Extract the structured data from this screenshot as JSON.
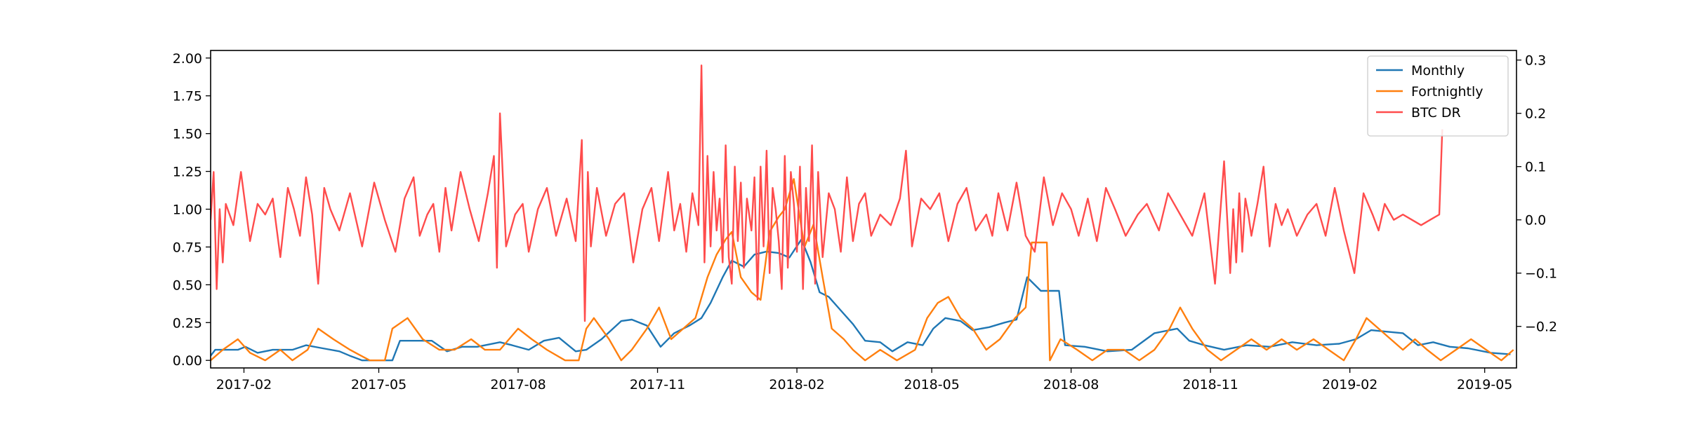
{
  "chart_data": {
    "type": "line",
    "title": "",
    "xlabel": "",
    "ylabel": "",
    "y2label": "",
    "xlim": [
      "2017-01-10",
      "2019-05-22"
    ],
    "ylim": [
      -0.05,
      2.05
    ],
    "y2lim": [
      -0.278,
      0.318
    ],
    "grid": false,
    "legend_position": "top-right",
    "x_ticks": [
      "2017-02",
      "2017-05",
      "2017-08",
      "2017-11",
      "2018-02",
      "2018-05",
      "2018-08",
      "2018-11",
      "2019-02",
      "2019-05"
    ],
    "y_ticks": [
      "0.00",
      "0.25",
      "0.50",
      "0.75",
      "1.00",
      "1.25",
      "1.50",
      "1.75",
      "2.00"
    ],
    "y2_ticks": [
      "−0.2",
      "−0.1",
      "0.0",
      "0.1",
      "0.2",
      "0.3"
    ],
    "series": [
      {
        "name": "Monthly",
        "axis": "left",
        "color": "#1f77b4",
        "x": [
          "2017-01-10",
          "2017-01-13",
          "2017-01-28",
          "2017-02-02",
          "2017-02-10",
          "2017-02-20",
          "2017-03-05",
          "2017-03-14",
          "2017-03-25",
          "2017-04-05",
          "2017-04-12",
          "2017-04-20",
          "2017-05-10",
          "2017-05-15",
          "2017-06-05",
          "2017-06-15",
          "2017-06-25",
          "2017-07-05",
          "2017-07-20",
          "2017-07-28",
          "2017-08-08",
          "2017-08-18",
          "2017-08-28",
          "2017-09-08",
          "2017-09-15",
          "2017-09-25",
          "2017-10-08",
          "2017-10-15",
          "2017-10-25",
          "2017-11-03",
          "2017-11-12",
          "2017-11-22",
          "2017-11-30",
          "2017-12-06",
          "2017-12-14",
          "2017-12-20",
          "2017-12-28",
          "2018-01-04",
          "2018-01-12",
          "2018-01-20",
          "2018-01-27",
          "2018-02-04",
          "2018-02-10",
          "2018-02-16",
          "2018-02-22",
          "2018-03-02",
          "2018-03-10",
          "2018-03-18",
          "2018-03-28",
          "2018-04-05",
          "2018-04-15",
          "2018-04-25",
          "2018-05-02",
          "2018-05-10",
          "2018-05-20",
          "2018-05-28",
          "2018-06-08",
          "2018-06-18",
          "2018-06-26",
          "2018-07-03",
          "2018-07-12",
          "2018-07-24",
          "2018-07-28",
          "2018-08-10",
          "2018-08-25",
          "2018-09-10",
          "2018-09-25",
          "2018-10-10",
          "2018-10-18",
          "2018-10-28",
          "2018-11-10",
          "2018-11-25",
          "2018-12-10",
          "2018-12-25",
          "2019-01-10",
          "2019-01-25",
          "2019-02-05",
          "2019-02-15",
          "2019-02-25",
          "2019-03-08",
          "2019-03-18",
          "2019-03-28",
          "2019-04-08",
          "2019-04-20",
          "2019-05-05",
          "2019-05-18"
        ],
        "values": [
          0.03,
          0.07,
          0.07,
          0.09,
          0.05,
          0.07,
          0.07,
          0.1,
          0.08,
          0.06,
          0.03,
          0.0,
          0.0,
          0.13,
          0.13,
          0.06,
          0.09,
          0.09,
          0.12,
          0.1,
          0.07,
          0.13,
          0.15,
          0.06,
          0.07,
          0.14,
          0.26,
          0.27,
          0.23,
          0.09,
          0.18,
          0.23,
          0.28,
          0.38,
          0.55,
          0.66,
          0.62,
          0.7,
          0.72,
          0.71,
          0.68,
          0.8,
          0.65,
          0.45,
          0.42,
          0.33,
          0.24,
          0.13,
          0.12,
          0.06,
          0.12,
          0.1,
          0.21,
          0.28,
          0.26,
          0.2,
          0.22,
          0.25,
          0.27,
          0.55,
          0.46,
          0.46,
          0.1,
          0.09,
          0.06,
          0.07,
          0.18,
          0.21,
          0.13,
          0.1,
          0.07,
          0.1,
          0.09,
          0.12,
          0.1,
          0.11,
          0.14,
          0.2,
          0.19,
          0.18,
          0.1,
          0.12,
          0.09,
          0.08,
          0.05,
          0.04
        ]
      },
      {
        "name": "Fortnightly",
        "axis": "left",
        "color": "#ff7f0e",
        "x": [
          "2017-01-10",
          "2017-01-18",
          "2017-01-28",
          "2017-02-05",
          "2017-02-15",
          "2017-02-25",
          "2017-03-05",
          "2017-03-15",
          "2017-03-22",
          "2017-04-01",
          "2017-04-12",
          "2017-04-25",
          "2017-05-05",
          "2017-05-10",
          "2017-05-20",
          "2017-05-30",
          "2017-06-10",
          "2017-06-20",
          "2017-07-01",
          "2017-07-10",
          "2017-07-20",
          "2017-08-01",
          "2017-08-10",
          "2017-08-20",
          "2017-09-01",
          "2017-09-10",
          "2017-09-15",
          "2017-09-20",
          "2017-09-30",
          "2017-10-08",
          "2017-10-15",
          "2017-10-25",
          "2017-11-02",
          "2017-11-10",
          "2017-11-18",
          "2017-11-26",
          "2017-12-04",
          "2017-12-10",
          "2017-12-16",
          "2017-12-20",
          "2017-12-26",
          "2018-01-02",
          "2018-01-08",
          "2018-01-14",
          "2018-01-20",
          "2018-01-24",
          "2018-01-30",
          "2018-02-06",
          "2018-02-12",
          "2018-02-18",
          "2018-02-24",
          "2018-03-04",
          "2018-03-10",
          "2018-03-18",
          "2018-03-28",
          "2018-04-08",
          "2018-04-20",
          "2018-04-28",
          "2018-05-05",
          "2018-05-12",
          "2018-05-20",
          "2018-05-28",
          "2018-06-06",
          "2018-06-15",
          "2018-06-25",
          "2018-07-02",
          "2018-07-06",
          "2018-07-16",
          "2018-07-18",
          "2018-07-25",
          "2018-08-05",
          "2018-08-15",
          "2018-08-25",
          "2018-09-05",
          "2018-09-15",
          "2018-09-25",
          "2018-10-05",
          "2018-10-12",
          "2018-10-20",
          "2018-10-30",
          "2018-11-08",
          "2018-11-18",
          "2018-11-28",
          "2018-12-08",
          "2018-12-18",
          "2018-12-28",
          "2019-01-08",
          "2019-01-18",
          "2019-01-28",
          "2019-02-05",
          "2019-02-12",
          "2019-02-20",
          "2019-02-28",
          "2019-03-08",
          "2019-03-16",
          "2019-03-24",
          "2019-04-02",
          "2019-04-12",
          "2019-04-22",
          "2019-05-02",
          "2019-05-12",
          "2019-05-20"
        ],
        "values": [
          0.0,
          0.07,
          0.14,
          0.05,
          0.0,
          0.07,
          0.0,
          0.07,
          0.21,
          0.14,
          0.07,
          0.0,
          0.0,
          0.21,
          0.28,
          0.14,
          0.07,
          0.07,
          0.14,
          0.07,
          0.07,
          0.21,
          0.14,
          0.07,
          0.0,
          0.0,
          0.21,
          0.28,
          0.14,
          0.0,
          0.07,
          0.21,
          0.35,
          0.14,
          0.21,
          0.28,
          0.55,
          0.7,
          0.8,
          0.85,
          0.55,
          0.45,
          0.4,
          0.85,
          0.95,
          1.0,
          1.2,
          0.75,
          0.9,
          0.55,
          0.21,
          0.14,
          0.07,
          0.0,
          0.07,
          0.0,
          0.07,
          0.28,
          0.38,
          0.42,
          0.28,
          0.21,
          0.07,
          0.14,
          0.28,
          0.35,
          0.78,
          0.78,
          0.0,
          0.14,
          0.07,
          0.0,
          0.07,
          0.07,
          0.0,
          0.07,
          0.21,
          0.35,
          0.21,
          0.07,
          0.0,
          0.07,
          0.14,
          0.07,
          0.14,
          0.07,
          0.14,
          0.07,
          0.0,
          0.14,
          0.28,
          0.21,
          0.14,
          0.07,
          0.14,
          0.07,
          0.0,
          0.07,
          0.14,
          0.07,
          0.0,
          0.07
        ]
      },
      {
        "name": "BTC DR",
        "axis": "right",
        "color": "#ff4c4c",
        "x": [
          "2017-01-10",
          "2017-01-12",
          "2017-01-14",
          "2017-01-16",
          "2017-01-18",
          "2017-01-20",
          "2017-01-25",
          "2017-01-30",
          "2017-02-05",
          "2017-02-10",
          "2017-02-15",
          "2017-02-20",
          "2017-02-25",
          "2017-03-02",
          "2017-03-06",
          "2017-03-10",
          "2017-03-14",
          "2017-03-18",
          "2017-03-22",
          "2017-03-26",
          "2017-03-30",
          "2017-04-05",
          "2017-04-12",
          "2017-04-20",
          "2017-04-28",
          "2017-05-05",
          "2017-05-12",
          "2017-05-18",
          "2017-05-24",
          "2017-05-28",
          "2017-06-02",
          "2017-06-06",
          "2017-06-10",
          "2017-06-14",
          "2017-06-18",
          "2017-06-24",
          "2017-06-30",
          "2017-07-06",
          "2017-07-12",
          "2017-07-16",
          "2017-07-18",
          "2017-07-20",
          "2017-07-24",
          "2017-07-30",
          "2017-08-04",
          "2017-08-08",
          "2017-08-14",
          "2017-08-20",
          "2017-08-26",
          "2017-09-02",
          "2017-09-08",
          "2017-09-12",
          "2017-09-14",
          "2017-09-16",
          "2017-09-18",
          "2017-09-22",
          "2017-09-28",
          "2017-10-04",
          "2017-10-10",
          "2017-10-16",
          "2017-10-22",
          "2017-10-28",
          "2017-11-02",
          "2017-11-08",
          "2017-11-12",
          "2017-11-16",
          "2017-11-20",
          "2017-11-24",
          "2017-11-28",
          "2017-11-30",
          "2017-12-02",
          "2017-12-04",
          "2017-12-06",
          "2017-12-08",
          "2017-12-10",
          "2017-12-12",
          "2017-12-14",
          "2017-12-16",
          "2017-12-18",
          "2017-12-20",
          "2017-12-22",
          "2017-12-24",
          "2017-12-26",
          "2017-12-28",
          "2017-12-30",
          "2018-01-02",
          "2018-01-04",
          "2018-01-06",
          "2018-01-08",
          "2018-01-10",
          "2018-01-12",
          "2018-01-14",
          "2018-01-16",
          "2018-01-18",
          "2018-01-20",
          "2018-01-22",
          "2018-01-24",
          "2018-01-26",
          "2018-01-28",
          "2018-01-30",
          "2018-02-01",
          "2018-02-03",
          "2018-02-05",
          "2018-02-07",
          "2018-02-09",
          "2018-02-11",
          "2018-02-13",
          "2018-02-15",
          "2018-02-18",
          "2018-02-22",
          "2018-02-26",
          "2018-03-02",
          "2018-03-06",
          "2018-03-10",
          "2018-03-14",
          "2018-03-18",
          "2018-03-22",
          "2018-03-28",
          "2018-04-04",
          "2018-04-10",
          "2018-04-14",
          "2018-04-18",
          "2018-04-24",
          "2018-04-30",
          "2018-05-06",
          "2018-05-12",
          "2018-05-18",
          "2018-05-24",
          "2018-05-30",
          "2018-06-06",
          "2018-06-10",
          "2018-06-14",
          "2018-06-20",
          "2018-06-26",
          "2018-07-02",
          "2018-07-08",
          "2018-07-14",
          "2018-07-20",
          "2018-07-26",
          "2018-08-01",
          "2018-08-06",
          "2018-08-12",
          "2018-08-18",
          "2018-08-24",
          "2018-08-30",
          "2018-09-06",
          "2018-09-14",
          "2018-09-20",
          "2018-09-28",
          "2018-10-04",
          "2018-10-12",
          "2018-10-20",
          "2018-10-28",
          "2018-11-04",
          "2018-11-10",
          "2018-11-14",
          "2018-11-16",
          "2018-11-18",
          "2018-11-20",
          "2018-11-22",
          "2018-11-24",
          "2018-11-26",
          "2018-11-28",
          "2018-12-02",
          "2018-12-06",
          "2018-12-10",
          "2018-12-14",
          "2018-12-18",
          "2018-12-22",
          "2018-12-28",
          "2019-01-04",
          "2019-01-10",
          "2019-01-16",
          "2019-01-22",
          "2019-01-28",
          "2019-02-04",
          "2019-02-10",
          "2019-02-16",
          "2019-02-20",
          "2019-02-24",
          "2019-03-02",
          "2019-03-08",
          "2019-03-14",
          "2019-03-20",
          "2019-03-26",
          "2019-04-01",
          "2019-04-03"
        ],
        "values": [
          0.0,
          0.09,
          -0.13,
          0.02,
          -0.08,
          0.03,
          -0.01,
          0.09,
          -0.04,
          0.03,
          0.01,
          0.04,
          -0.07,
          0.06,
          0.02,
          -0.03,
          0.08,
          0.01,
          -0.12,
          0.06,
          0.02,
          -0.02,
          0.05,
          -0.05,
          0.07,
          0.0,
          -0.06,
          0.04,
          0.08,
          -0.03,
          0.01,
          0.03,
          -0.06,
          0.06,
          -0.02,
          0.09,
          0.02,
          -0.04,
          0.05,
          0.12,
          -0.09,
          0.2,
          -0.05,
          0.01,
          0.03,
          -0.06,
          0.02,
          0.06,
          -0.03,
          0.04,
          -0.04,
          0.15,
          -0.19,
          0.09,
          -0.05,
          0.06,
          -0.03,
          0.03,
          0.05,
          -0.08,
          0.02,
          0.06,
          -0.04,
          0.09,
          -0.02,
          0.03,
          -0.06,
          0.05,
          -0.01,
          0.29,
          -0.08,
          0.12,
          -0.05,
          0.09,
          -0.02,
          0.04,
          -0.08,
          0.14,
          -0.07,
          -0.12,
          0.1,
          -0.04,
          0.07,
          -0.09,
          0.04,
          -0.02,
          0.08,
          -0.15,
          0.1,
          -0.05,
          0.13,
          -0.1,
          0.06,
          0.02,
          -0.04,
          -0.13,
          0.12,
          -0.09,
          0.09,
          0.03,
          -0.06,
          0.1,
          -0.13,
          0.06,
          -0.04,
          0.14,
          -0.12,
          0.09,
          -0.07,
          0.05,
          0.02,
          -0.06,
          0.08,
          -0.04,
          0.03,
          0.05,
          -0.03,
          0.01,
          -0.01,
          0.04,
          0.13,
          -0.05,
          0.04,
          0.02,
          0.05,
          -0.04,
          0.03,
          0.06,
          -0.02,
          0.01,
          -0.03,
          0.05,
          -0.02,
          0.07,
          -0.03,
          -0.06,
          0.08,
          -0.01,
          0.05,
          0.02,
          -0.03,
          0.04,
          -0.04,
          0.06,
          0.02,
          -0.03,
          0.01,
          0.03,
          -0.02,
          0.05,
          0.01,
          -0.03,
          0.05,
          -0.12,
          0.11,
          -0.1,
          0.02,
          -0.08,
          0.05,
          -0.06,
          0.04,
          0.01,
          -0.03,
          0.03,
          0.1,
          -0.05,
          0.03,
          -0.01,
          0.02,
          -0.03,
          0.01,
          0.03,
          -0.03,
          0.06,
          -0.02,
          -0.1,
          0.05,
          0.01,
          -0.02,
          0.03,
          0.0,
          0.01,
          0.0,
          -0.01,
          0.0,
          0.01,
          0.17
        ]
      }
    ]
  }
}
